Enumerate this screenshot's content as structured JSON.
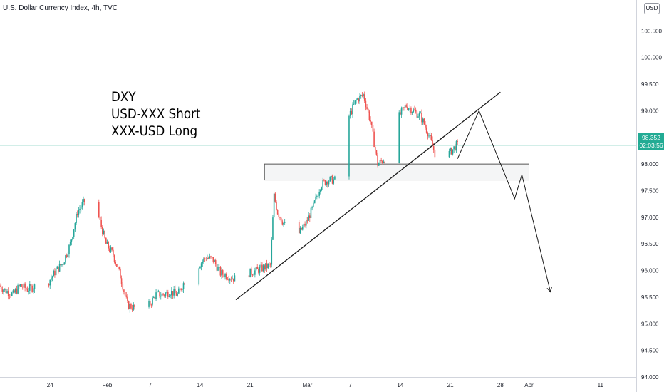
{
  "header": {
    "symbol_title": "U.S. Dollar Currency Index, 4h, TVC",
    "currency": "USD"
  },
  "annotation": {
    "lines": [
      "DXY",
      "USD-XXX Short",
      "XXX-USD Long"
    ]
  },
  "last_price": {
    "value": "98.352",
    "countdown": "02:03:56"
  },
  "colors": {
    "up": "#26a69a",
    "down": "#ef5350",
    "price_line": "#22ab94",
    "axis_text": "#131722",
    "drawing": "#1b1b1b",
    "zone_fill": "#f2f3f5",
    "zone_stroke": "#555555"
  },
  "chart_data": {
    "type": "candlestick",
    "title": "U.S. Dollar Currency Index, 4h, TVC",
    "ylim": [
      94.0,
      101.0
    ],
    "y_ticks": [
      "100.500",
      "100.000",
      "99.500",
      "99.000",
      "98.500",
      "98.000",
      "97.500",
      "97.000",
      "96.500",
      "96.000",
      "95.500",
      "95.000",
      "94.500",
      "94.000"
    ],
    "y_tick_values": [
      100.5,
      100.0,
      99.5,
      99.0,
      98.5,
      98.0,
      97.5,
      97.0,
      96.5,
      96.0,
      95.5,
      95.0,
      94.5,
      94.0
    ],
    "x_ticks": [
      "24",
      "Feb",
      "7",
      "14",
      "21",
      "Mar",
      "7",
      "14",
      "21",
      "28",
      "Apr",
      "11"
    ],
    "x_tick_dates": [
      "2022-01-24",
      "2022-02-01",
      "2022-02-07",
      "2022-02-14",
      "2022-02-21",
      "2022-03-01",
      "2022-03-07",
      "2022-03-14",
      "2022-03-21",
      "2022-03-28",
      "2022-04-01",
      "2022-04-11"
    ],
    "x_range_dates": [
      "2022-01-17",
      "2022-04-16"
    ],
    "last_price": 98.352,
    "price_path": [
      [
        "2022-01-17",
        95.72
      ],
      [
        "2022-01-18",
        95.62
      ],
      [
        "2022-01-19",
        95.55
      ],
      [
        "2022-01-20",
        95.72
      ],
      [
        "2022-01-21",
        95.65
      ],
      [
        "2022-01-24",
        95.8
      ],
      [
        "2022-01-25",
        96.0
      ],
      [
        "2022-01-26",
        96.15
      ],
      [
        "2022-01-27",
        96.5
      ],
      [
        "2022-01-28",
        97.1
      ],
      [
        "2022-01-29",
        97.3
      ],
      [
        "2022-01-31",
        97.0
      ],
      [
        "2022-02-01",
        96.5
      ],
      [
        "2022-02-02",
        96.3
      ],
      [
        "2022-02-03",
        95.9
      ],
      [
        "2022-02-04",
        95.35
      ],
      [
        "2022-02-06",
        95.25
      ],
      [
        "2022-02-07",
        95.35
      ],
      [
        "2022-02-08",
        95.55
      ],
      [
        "2022-02-09",
        95.55
      ],
      [
        "2022-02-10",
        95.6
      ],
      [
        "2022-02-11",
        95.55
      ],
      [
        "2022-02-12",
        95.8
      ],
      [
        "2022-02-14",
        96.1
      ],
      [
        "2022-02-15",
        96.25
      ],
      [
        "2022-02-16",
        96.2
      ],
      [
        "2022-02-17",
        95.95
      ],
      [
        "2022-02-18",
        95.9
      ],
      [
        "2022-02-19",
        95.85
      ],
      [
        "2022-02-21",
        95.95
      ],
      [
        "2022-02-22",
        96.0
      ],
      [
        "2022-02-23",
        96.05
      ],
      [
        "2022-02-24",
        96.1
      ],
      [
        "2022-02-24T12",
        97.4
      ],
      [
        "2022-02-25",
        97.1
      ],
      [
        "2022-02-26",
        96.85
      ],
      [
        "2022-02-28",
        96.7
      ],
      [
        "2022-03-01",
        96.9
      ],
      [
        "2022-03-02",
        97.2
      ],
      [
        "2022-03-03",
        97.6
      ],
      [
        "2022-03-04",
        97.7
      ],
      [
        "2022-03-05",
        97.7
      ],
      [
        "2022-03-06",
        98.3
      ],
      [
        "2022-03-07",
        98.9
      ],
      [
        "2022-03-08",
        99.2
      ],
      [
        "2022-03-09",
        99.3
      ],
      [
        "2022-03-10",
        98.8
      ],
      [
        "2022-03-11",
        98.0
      ],
      [
        "2022-03-12",
        98.1
      ],
      [
        "2022-03-13",
        98.4
      ],
      [
        "2022-03-14",
        98.9
      ],
      [
        "2022-03-15",
        99.1
      ],
      [
        "2022-03-16",
        99.0
      ],
      [
        "2022-03-17",
        98.9
      ],
      [
        "2022-03-18",
        98.6
      ],
      [
        "2022-03-19",
        98.2
      ],
      [
        "2022-03-20",
        98.0
      ],
      [
        "2022-03-21",
        98.2
      ],
      [
        "2022-03-22",
        98.352
      ]
    ],
    "drawings": {
      "trendline": [
        [
          "2022-02-19",
          95.45
        ],
        [
          "2022-03-28",
          99.35
        ]
      ],
      "zone": {
        "from": "2022-02-23",
        "to": "2022-04-01",
        "top": 98.0,
        "bottom": 97.7
      },
      "projection": [
        [
          "2022-03-22",
          98.1
        ],
        [
          "2022-03-25",
          99.0
        ],
        [
          "2022-03-30",
          97.35
        ],
        [
          "2022-03-31",
          97.8
        ],
        [
          "2022-04-04",
          95.6
        ]
      ]
    }
  }
}
